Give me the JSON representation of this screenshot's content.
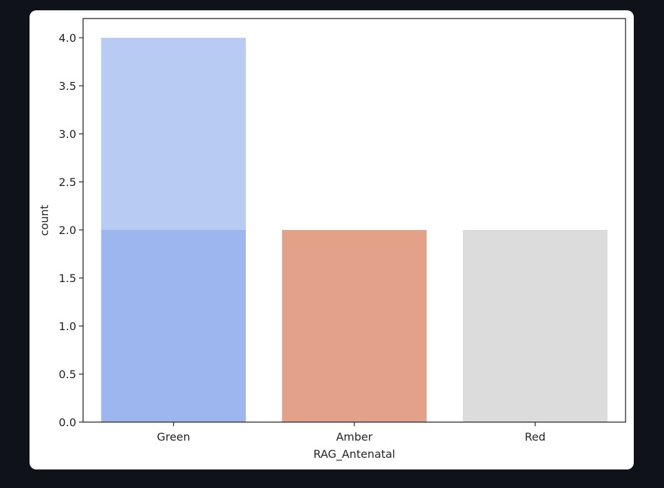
{
  "chart_data": {
    "type": "bar",
    "categories": [
      "Green",
      "Amber",
      "Red"
    ],
    "series": [
      {
        "values": [
          2,
          2,
          2
        ],
        "colors": [
          "#9db6f0",
          "#e4a18a",
          "#dcdcdc"
        ]
      },
      {
        "values": [
          2,
          0,
          0
        ],
        "colors": [
          "#b7cbf3",
          "#e4a18a",
          "#dcdcdc"
        ]
      }
    ],
    "stacked": true,
    "xlabel": "RAG_Antenatal",
    "ylabel": "count",
    "ylim": [
      0,
      4.0
    ],
    "yticks": [
      "0.0",
      "0.5",
      "1.0",
      "1.5",
      "2.0",
      "2.5",
      "3.0",
      "3.5",
      "4.0"
    ],
    "grid": false,
    "legend": "none"
  }
}
